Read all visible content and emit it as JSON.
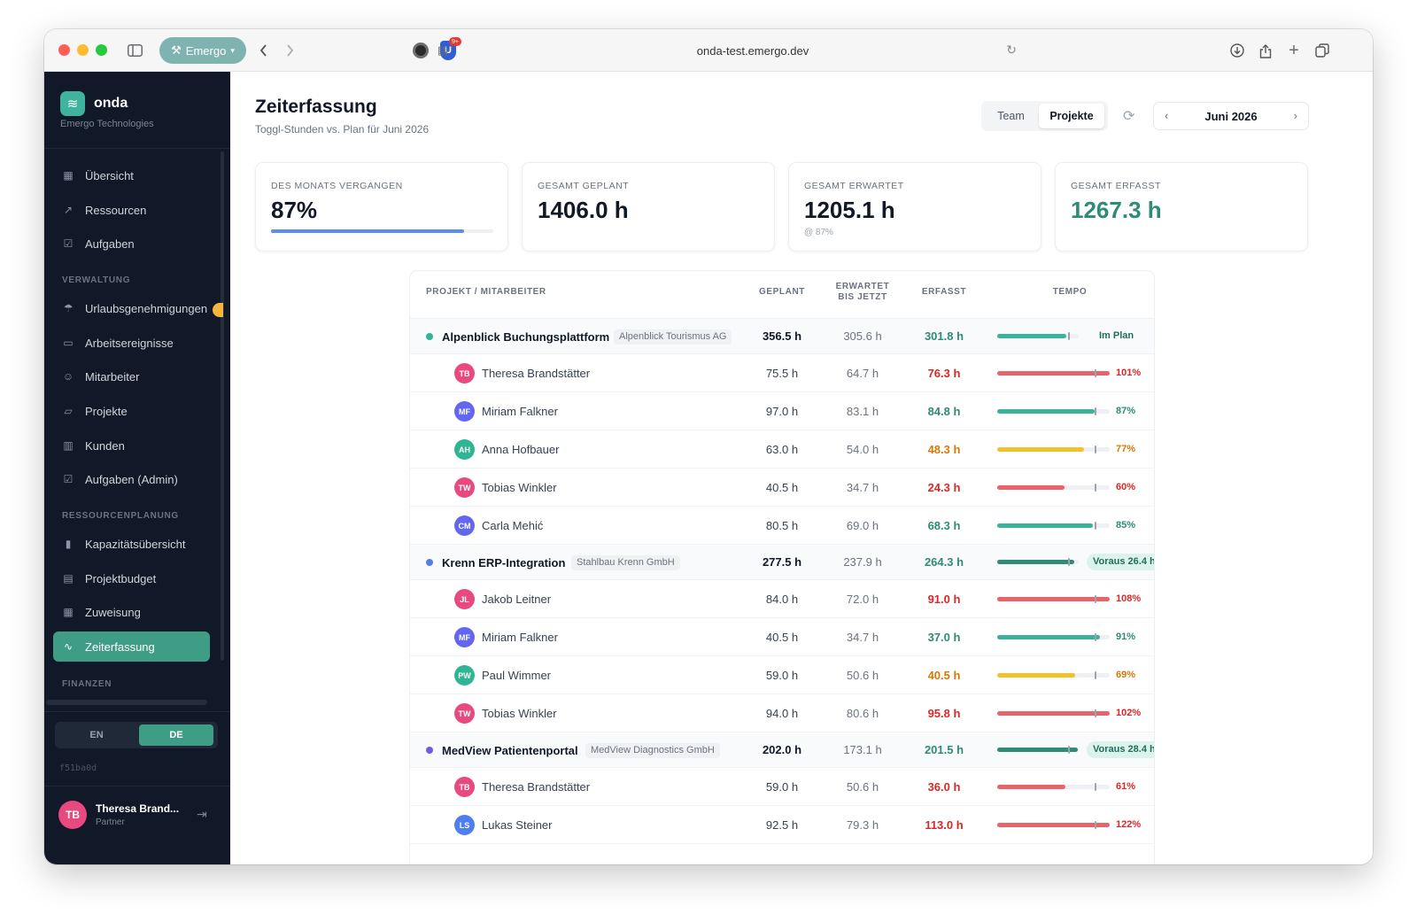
{
  "browser": {
    "profile": "Emergo",
    "url": "onda-test.emergo.dev",
    "ext_badge": "9+"
  },
  "sidebar": {
    "brand": "onda",
    "company": "Emergo Technologies",
    "items": [
      {
        "label": "Übersicht",
        "icon": "grid-icon"
      },
      {
        "label": "Ressourcen",
        "icon": "trend-icon"
      },
      {
        "label": "Aufgaben",
        "icon": "checkbox-icon"
      }
    ],
    "sections": {
      "verwaltung": "VERWALTUNG",
      "ressourcenplanung": "RESSOURCENPLANUNG",
      "finanzen": "FINANZEN"
    },
    "admin_items": [
      {
        "label": "Urlaubsgenehmigungen",
        "icon": "umbrella-icon"
      },
      {
        "label": "Arbeitsereignisse",
        "icon": "calendar-icon"
      },
      {
        "label": "Mitarbeiter",
        "icon": "users-icon"
      },
      {
        "label": "Projekte",
        "icon": "folder-icon"
      },
      {
        "label": "Kunden",
        "icon": "building-icon"
      },
      {
        "label": "Aufgaben (Admin)",
        "icon": "checkbox-icon"
      }
    ],
    "planning_items": [
      {
        "label": "Kapazitätsübersicht",
        "icon": "bar-chart-icon"
      },
      {
        "label": "Projektbudget",
        "icon": "table-icon"
      },
      {
        "label": "Zuweisung",
        "icon": "grid-icon"
      },
      {
        "label": "Zeiterfassung",
        "icon": "activity-icon",
        "active": true
      }
    ],
    "lang": {
      "en": "EN",
      "de": "DE",
      "selected": "DE"
    },
    "commit": "f51ba0d",
    "user": {
      "initials": "TB",
      "name": "Theresa Brand...",
      "role": "Partner"
    }
  },
  "header": {
    "title": "Zeiterfassung",
    "subtitle": "Toggl-Stunden vs. Plan für Juni 2026",
    "view_toggle": {
      "team": "Team",
      "projects": "Projekte",
      "selected": "Projekte"
    },
    "month": "Juni 2026"
  },
  "stats": {
    "elapsed": {
      "label": "DES MONATS VERGANGEN",
      "value": "87%",
      "progress": 0.87
    },
    "planned": {
      "label": "GESAMT GEPLANT",
      "value": "1406.0 h"
    },
    "expected": {
      "label": "GESAMT ERWARTET",
      "value": "1205.1 h",
      "note": "@ 87%"
    },
    "logged": {
      "label": "GESAMT ERFASST",
      "value": "1267.3 h"
    }
  },
  "table": {
    "headers": {
      "name": "PROJEKT / MITARBEITER",
      "planned": "GEPLANT",
      "expected_l1": "ERWARTET",
      "expected_l2": "BIS JETZT",
      "logged": "ERFASST",
      "tempo": "TEMPO"
    },
    "projects": [
      {
        "name": "Alpenblick Buchungsplattform",
        "client": "Alpenblick Tourismus AG",
        "dot_color": "#2fb594",
        "planned": "356.5 h",
        "expected": "305.6 h",
        "logged": "301.8 h",
        "status": "Im Plan",
        "status_kind": "plain",
        "progress": 0.85,
        "bar_color": "#3bb39b",
        "members": [
          {
            "initials": "TB",
            "name": "Theresa Brandstätter",
            "av_color": "#e8497e",
            "planned": "75.5 h",
            "expected": "64.7 h",
            "logged": "76.3 h",
            "pct": "101%",
            "progress": 1.01,
            "tone": "red"
          },
          {
            "initials": "MF",
            "name": "Miriam Falkner",
            "av_color": "#6366f1",
            "planned": "97.0 h",
            "expected": "83.1 h",
            "logged": "84.8 h",
            "pct": "87%",
            "progress": 0.87,
            "tone": "green"
          },
          {
            "initials": "AH",
            "name": "Anna Hofbauer",
            "av_color": "#2fb594",
            "planned": "63.0 h",
            "expected": "54.0 h",
            "logged": "48.3 h",
            "pct": "77%",
            "progress": 0.77,
            "tone": "amber"
          },
          {
            "initials": "TW",
            "name": "Tobias Winkler",
            "av_color": "#e8497e",
            "planned": "40.5 h",
            "expected": "34.7 h",
            "logged": "24.3 h",
            "pct": "60%",
            "progress": 0.6,
            "tone": "red"
          },
          {
            "initials": "CM",
            "name": "Carla Mehić",
            "av_color": "#6366f1",
            "planned": "80.5 h",
            "expected": "69.0 h",
            "logged": "68.3 h",
            "pct": "85%",
            "progress": 0.85,
            "tone": "green"
          }
        ]
      },
      {
        "name": "Krenn ERP-Integration",
        "client": "Stahlbau Krenn GmbH",
        "dot_color": "#4f7ef0",
        "planned": "277.5 h",
        "expected": "237.9 h",
        "logged": "264.3 h",
        "status": "Voraus 26.4 h",
        "status_kind": "pill",
        "progress": 0.95,
        "bar_color": "#2f8a76",
        "members": [
          {
            "initials": "JL",
            "name": "Jakob Leitner",
            "av_color": "#e8497e",
            "planned": "84.0 h",
            "expected": "72.0 h",
            "logged": "91.0 h",
            "pct": "108%",
            "progress": 1.08,
            "tone": "red"
          },
          {
            "initials": "MF",
            "name": "Miriam Falkner",
            "av_color": "#6366f1",
            "planned": "40.5 h",
            "expected": "34.7 h",
            "logged": "37.0 h",
            "pct": "91%",
            "progress": 0.91,
            "tone": "green"
          },
          {
            "initials": "PW",
            "name": "Paul Wimmer",
            "av_color": "#2fb594",
            "planned": "59.0 h",
            "expected": "50.6 h",
            "logged": "40.5 h",
            "pct": "69%",
            "progress": 0.69,
            "tone": "amber"
          },
          {
            "initials": "TW",
            "name": "Tobias Winkler",
            "av_color": "#e8497e",
            "planned": "94.0 h",
            "expected": "80.6 h",
            "logged": "95.8 h",
            "pct": "102%",
            "progress": 1.02,
            "tone": "red"
          }
        ]
      },
      {
        "name": "MedView Patientenportal",
        "client": "MedView Diagnostics GmbH",
        "dot_color": "#6c5ce7",
        "planned": "202.0 h",
        "expected": "173.1 h",
        "logged": "201.5 h",
        "status": "Voraus 28.4 h",
        "status_kind": "pill",
        "progress": 0.99,
        "bar_color": "#2f8a76",
        "members": [
          {
            "initials": "TB",
            "name": "Theresa Brandstätter",
            "av_color": "#e8497e",
            "planned": "59.0 h",
            "expected": "50.6 h",
            "logged": "36.0 h",
            "pct": "61%",
            "progress": 0.61,
            "tone": "red"
          },
          {
            "initials": "LS",
            "name": "Lukas Steiner",
            "av_color": "#4f7ef0",
            "planned": "92.5 h",
            "expected": "79.3 h",
            "logged": "113.0 h",
            "pct": "122%",
            "progress": 1.22,
            "tone": "red"
          }
        ]
      }
    ]
  },
  "colors": {
    "accent": "#3f9c85",
    "red": "#e8636a",
    "red_text": "#dc2626",
    "green": "#3bb39b",
    "green_text": "#2f8a76",
    "amber": "#f2c12e",
    "amber_text": "#d97706"
  }
}
